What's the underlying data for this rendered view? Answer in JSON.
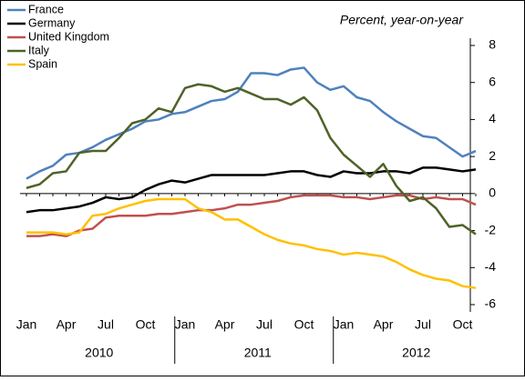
{
  "chart_data": {
    "type": "line",
    "annotation": "Percent, year-on-year",
    "categories": [
      "Jan",
      null,
      null,
      "Apr",
      null,
      null,
      "Jul",
      null,
      null,
      "Oct",
      null,
      null,
      "Jan",
      null,
      null,
      "Apr",
      null,
      null,
      "Jul",
      null,
      null,
      "Oct",
      null,
      null,
      "Jan",
      null,
      null,
      "Apr",
      null,
      null,
      "Jul",
      null,
      null,
      "Oct",
      null
    ],
    "year_labels": [
      "2010",
      "2011",
      "2012"
    ],
    "series": [
      {
        "name": "France",
        "color": "#4f81bd",
        "values": [
          0.8,
          1.2,
          1.5,
          2.1,
          2.2,
          2.5,
          2.9,
          3.2,
          3.5,
          3.9,
          4.0,
          4.3,
          4.4,
          4.7,
          5.0,
          5.1,
          5.5,
          6.5,
          6.5,
          6.4,
          6.7,
          6.8,
          6.0,
          5.6,
          5.8,
          5.2,
          5.0,
          4.4,
          3.9,
          3.5,
          3.1,
          3.0,
          2.5,
          2.0,
          2.3
        ]
      },
      {
        "name": "Germany",
        "color": "#000000",
        "values": [
          -1.0,
          -0.9,
          -0.9,
          -0.8,
          -0.7,
          -0.5,
          -0.2,
          -0.3,
          -0.2,
          0.2,
          0.5,
          0.7,
          0.6,
          0.8,
          1.0,
          1.0,
          1.0,
          1.0,
          1.0,
          1.1,
          1.2,
          1.2,
          1.0,
          0.9,
          1.2,
          1.1,
          1.1,
          1.2,
          1.2,
          1.1,
          1.4,
          1.4,
          1.3,
          1.2,
          1.3
        ]
      },
      {
        "name": "United Kingdom",
        "color": "#c0504d",
        "values": [
          -2.3,
          -2.3,
          -2.2,
          -2.3,
          -2.0,
          -1.9,
          -1.3,
          -1.2,
          -1.2,
          -1.2,
          -1.1,
          -1.1,
          -1.0,
          -0.9,
          -0.9,
          -0.8,
          -0.6,
          -0.6,
          -0.5,
          -0.4,
          -0.2,
          -0.1,
          -0.1,
          -0.1,
          -0.2,
          -0.2,
          -0.3,
          -0.2,
          -0.1,
          -0.1,
          -0.3,
          -0.2,
          -0.3,
          -0.3,
          -0.6
        ]
      },
      {
        "name": "Italy",
        "color": "#4f6228",
        "values": [
          0.3,
          0.5,
          1.1,
          1.2,
          2.2,
          2.3,
          2.3,
          3.0,
          3.8,
          4.0,
          4.6,
          4.4,
          5.7,
          5.9,
          5.8,
          5.5,
          5.7,
          5.4,
          5.1,
          5.1,
          4.8,
          5.2,
          4.5,
          3.0,
          2.1,
          1.5,
          0.9,
          1.6,
          0.4,
          -0.4,
          -0.2,
          -0.8,
          -1.8,
          -1.7,
          -2.2
        ]
      },
      {
        "name": "Spain",
        "color": "#ffc000",
        "values": [
          -2.1,
          -2.1,
          -2.1,
          -2.2,
          -2.1,
          -1.2,
          -1.1,
          -0.8,
          -0.6,
          -0.4,
          -0.3,
          -0.3,
          -0.3,
          -0.8,
          -1.0,
          -1.4,
          -1.4,
          -1.8,
          -2.2,
          -2.5,
          -2.7,
          -2.8,
          -3.0,
          -3.1,
          -3.3,
          -3.2,
          -3.3,
          -3.4,
          -3.7,
          -4.1,
          -4.4,
          -4.6,
          -4.7,
          -5.0,
          -5.1
        ]
      }
    ],
    "ylim": [
      -6,
      8
    ],
    "yticks": [
      -6,
      -4,
      -2,
      0,
      2,
      4,
      6,
      8
    ],
    "legend": "top-left"
  }
}
